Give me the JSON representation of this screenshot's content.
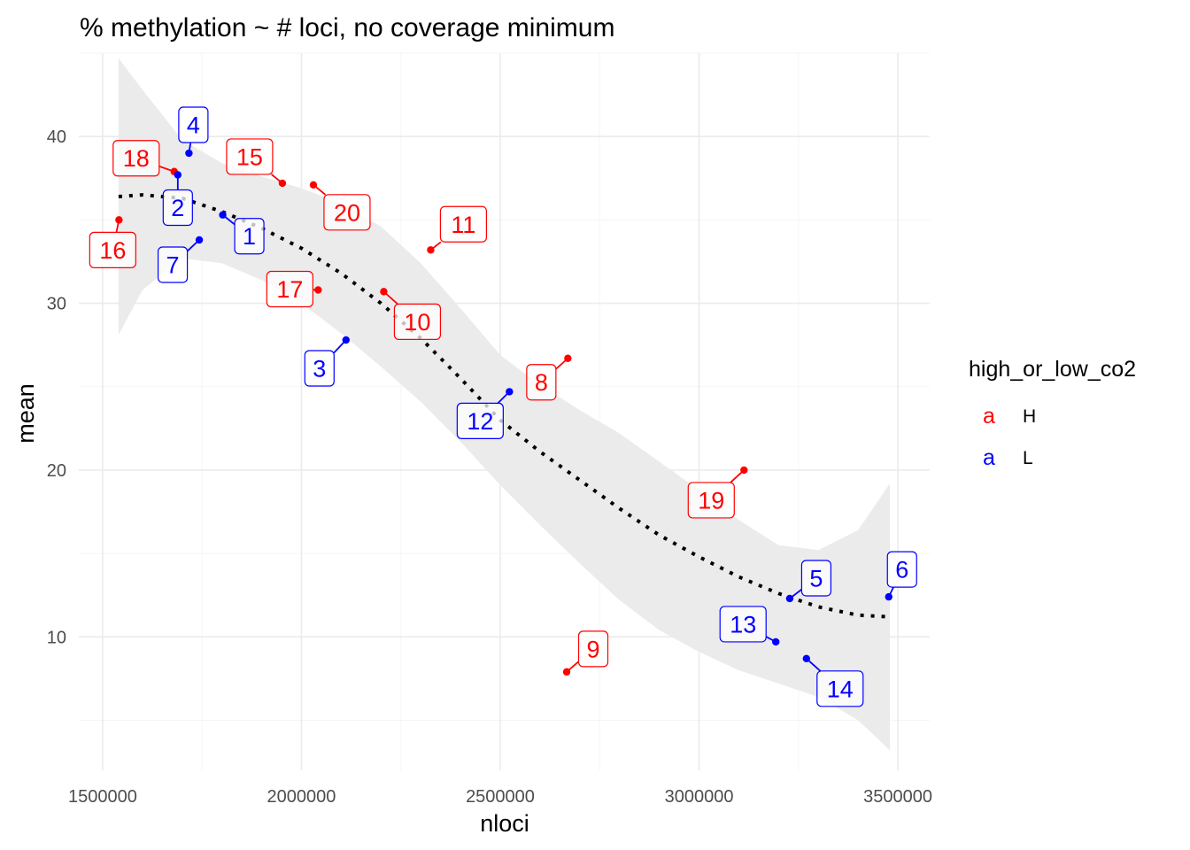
{
  "chart_data": {
    "type": "scatter",
    "title": "% methylation ~ # loci, no coverage minimum",
    "xlabel": "nloci",
    "ylabel": "mean",
    "xlim": [
      1440000,
      3580000
    ],
    "ylim": [
      2.0,
      45.0
    ],
    "x_ticks": [
      1500000,
      2000000,
      2500000,
      3000000,
      3500000
    ],
    "x_tick_labels": [
      "1500000",
      "2000000",
      "2500000",
      "3000000",
      "3500000"
    ],
    "y_ticks": [
      10,
      20,
      30,
      40
    ],
    "y_tick_labels": [
      "10",
      "20",
      "30",
      "40"
    ],
    "grid": true,
    "legend": {
      "title": "high_or_low_co2",
      "position": "right",
      "key_glyph": "a",
      "entries": [
        {
          "label": "H",
          "color": "#ff0000"
        },
        {
          "label": "L",
          "color": "#0000ff"
        }
      ]
    },
    "points": [
      {
        "label": "16",
        "group": "H",
        "x": 1541000,
        "y": 35.0
      },
      {
        "label": "18",
        "group": "H",
        "x": 1680000,
        "y": 37.9
      },
      {
        "label": "4",
        "group": "L",
        "x": 1717000,
        "y": 39.0
      },
      {
        "label": "2",
        "group": "L",
        "x": 1689000,
        "y": 37.7
      },
      {
        "label": "7",
        "group": "L",
        "x": 1743000,
        "y": 33.8
      },
      {
        "label": "1",
        "group": "L",
        "x": 1802000,
        "y": 35.3
      },
      {
        "label": "15",
        "group": "H",
        "x": 1952000,
        "y": 37.2
      },
      {
        "label": "20",
        "group": "H",
        "x": 2030000,
        "y": 37.1
      },
      {
        "label": "17",
        "group": "H",
        "x": 2042000,
        "y": 30.8
      },
      {
        "label": "3",
        "group": "L",
        "x": 2112000,
        "y": 27.8
      },
      {
        "label": "10",
        "group": "H",
        "x": 2207000,
        "y": 30.7
      },
      {
        "label": "11",
        "group": "H",
        "x": 2325000,
        "y": 33.2
      },
      {
        "label": "12",
        "group": "L",
        "x": 2523000,
        "y": 24.7
      },
      {
        "label": "8",
        "group": "H",
        "x": 2670000,
        "y": 26.7
      },
      {
        "label": "9",
        "group": "H",
        "x": 2667000,
        "y": 7.9
      },
      {
        "label": "19",
        "group": "H",
        "x": 3113000,
        "y": 20.0
      },
      {
        "label": "13",
        "group": "L",
        "x": 3193000,
        "y": 9.7
      },
      {
        "label": "14",
        "group": "L",
        "x": 3270000,
        "y": 8.7
      },
      {
        "label": "5",
        "group": "L",
        "x": 3228000,
        "y": 12.3
      },
      {
        "label": "6",
        "group": "L",
        "x": 3477000,
        "y": 12.4
      }
    ],
    "smooth": {
      "x": [
        1540000,
        1600000,
        1700000,
        1800000,
        1900000,
        2000000,
        2100000,
        2200000,
        2300000,
        2400000,
        2500000,
        2600000,
        2700000,
        2800000,
        2900000,
        3000000,
        3100000,
        3200000,
        3300000,
        3400000,
        3480000
      ],
      "y": [
        36.4,
        36.5,
        36.3,
        35.5,
        34.5,
        33.3,
        31.8,
        30.0,
        27.9,
        25.5,
        23.0,
        21.1,
        19.4,
        17.7,
        16.1,
        14.8,
        13.6,
        12.6,
        11.8,
        11.3,
        11.2
      ],
      "lower": [
        28.1,
        30.8,
        32.7,
        32.4,
        31.4,
        30.0,
        28.2,
        26.2,
        24.1,
        21.7,
        19.1,
        16.7,
        14.4,
        12.2,
        10.4,
        9.1,
        8.0,
        7.2,
        6.4,
        5.0,
        3.2
      ],
      "upper": [
        44.7,
        42.8,
        39.8,
        38.4,
        37.6,
        36.9,
        36.0,
        34.6,
        32.4,
        29.7,
        26.9,
        25.1,
        23.6,
        22.2,
        20.5,
        18.8,
        17.0,
        15.5,
        15.2,
        16.4,
        19.2
      ]
    },
    "colors": {
      "H": "#ff0000",
      "L": "#0000ff",
      "ribbon": "#ebebeb",
      "grid_major": "#ebebeb",
      "grid_minor": "#f5f5f5",
      "smooth_line": "#000000",
      "axis_text": "#4d4d4d",
      "text": "#000000"
    }
  }
}
